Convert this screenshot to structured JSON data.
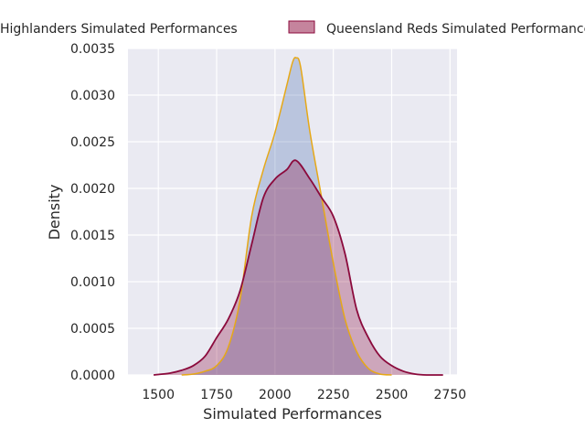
{
  "chart_data": {
    "type": "area",
    "subtype": "kde-density",
    "title": "",
    "xlabel": "Simulated Performances",
    "ylabel": "Density",
    "xlim": [
      1370,
      2780
    ],
    "ylim": [
      0,
      0.0035
    ],
    "x_ticks": [
      1500,
      1750,
      2000,
      2250,
      2500,
      2750
    ],
    "x_tick_labels": [
      "1500",
      "1750",
      "2000",
      "2250",
      "2500",
      "2750"
    ],
    "y_ticks": [
      0,
      0.0005,
      0.001,
      0.0015,
      0.002,
      0.0025,
      0.003,
      0.0035
    ],
    "y_tick_labels": [
      "0.0000",
      "0.0005",
      "0.0010",
      "0.0015",
      "0.0020",
      "0.0025",
      "0.0030",
      "0.0035"
    ],
    "grid": true,
    "legend_position": "top, above plot",
    "series": [
      {
        "name": "Highlanders Simulated Performances",
        "fill": "#4c72b0",
        "line": "#e6a817",
        "x": [
          1600,
          1650,
          1700,
          1750,
          1800,
          1850,
          1900,
          1950,
          2000,
          2050,
          2075,
          2090,
          2110,
          2150,
          2200,
          2250,
          2300,
          2350,
          2400,
          2450,
          2500
        ],
        "y": [
          0.0,
          1e-05,
          4e-05,
          0.0001,
          0.0003,
          0.0008,
          0.0017,
          0.0022,
          0.0026,
          0.0031,
          0.00335,
          0.0034,
          0.0033,
          0.0026,
          0.0019,
          0.0012,
          0.0006,
          0.00025,
          7e-05,
          1e-05,
          0.0
        ]
      },
      {
        "name": "Queensland Reds Simulated Performances",
        "fill": "#8b0a3c",
        "line": "#8b0a3c",
        "x": [
          1480,
          1550,
          1600,
          1650,
          1700,
          1750,
          1800,
          1850,
          1900,
          1950,
          2000,
          2050,
          2090,
          2150,
          2200,
          2250,
          2300,
          2350,
          2400,
          2450,
          2500,
          2550,
          2600,
          2650,
          2720
        ],
        "y": [
          0.0,
          2e-05,
          5e-05,
          0.0001,
          0.0002,
          0.0004,
          0.0006,
          0.0009,
          0.0014,
          0.0019,
          0.0021,
          0.0022,
          0.0023,
          0.0021,
          0.0019,
          0.0017,
          0.0013,
          0.0007,
          0.0004,
          0.0002,
          0.0001,
          4e-05,
          1e-05,
          0.0,
          0.0
        ]
      }
    ]
  }
}
